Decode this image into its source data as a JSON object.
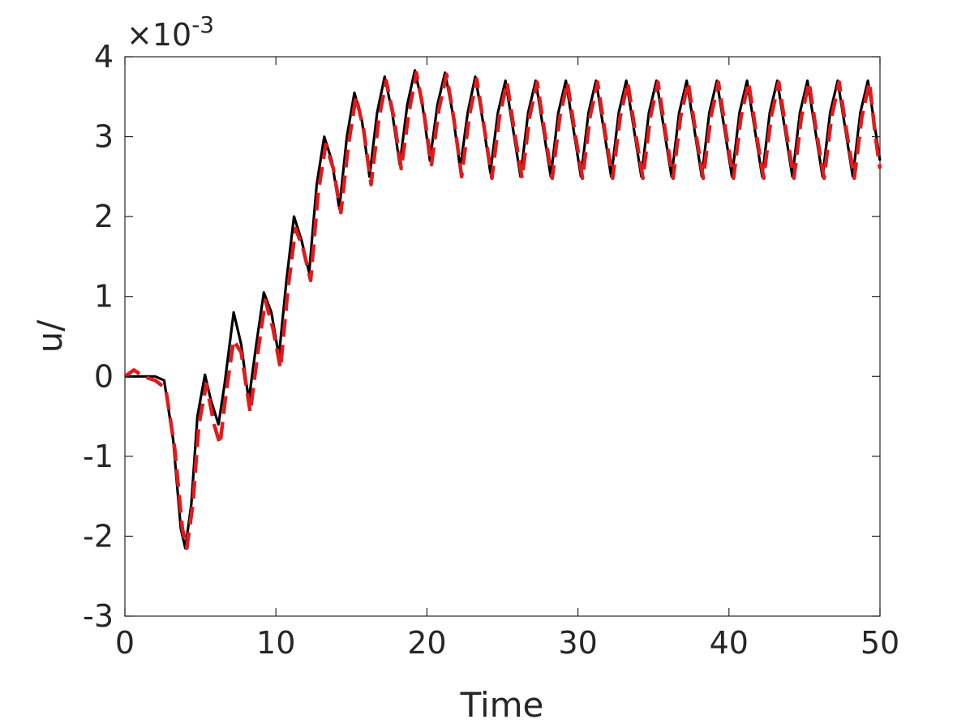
{
  "chart_data": {
    "type": "line",
    "title": "",
    "xlabel": "Time",
    "ylabel": "u/",
    "xlim": [
      0,
      50
    ],
    "ylim": [
      -3,
      4
    ],
    "x_ticks": [
      "0",
      "10",
      "20",
      "30",
      "40",
      "50"
    ],
    "y_ticks": [
      "-3",
      "-2",
      "-1",
      "0",
      "1",
      "2",
      "3",
      "4"
    ],
    "y_exponent": {
      "base": "×10",
      "power": "-3"
    },
    "y_units": "x10^-3",
    "grid": false,
    "legend": "none",
    "series": [
      {
        "style": "solid",
        "color": "#000000",
        "points": [
          [
            0,
            0
          ],
          [
            1,
            0
          ],
          [
            2,
            0
          ],
          [
            2.6,
            -0.05
          ],
          [
            3.2,
            -0.8
          ],
          [
            3.7,
            -1.9
          ],
          [
            4.0,
            -2.15
          ],
          [
            4.4,
            -1.6
          ],
          [
            4.8,
            -0.5
          ],
          [
            5.3,
            0.02
          ],
          [
            5.7,
            -0.3
          ],
          [
            6.2,
            -0.6
          ],
          [
            6.6,
            -0.1
          ],
          [
            7.2,
            0.8
          ],
          [
            7.7,
            0.4
          ],
          [
            8.2,
            -0.3
          ],
          [
            8.7,
            0.4
          ],
          [
            9.2,
            1.05
          ],
          [
            9.7,
            0.8
          ],
          [
            10.2,
            0.25
          ],
          [
            10.7,
            1.2
          ],
          [
            11.2,
            2.0
          ],
          [
            11.7,
            1.7
          ],
          [
            12.2,
            1.3
          ],
          [
            12.7,
            2.4
          ],
          [
            13.2,
            3.0
          ],
          [
            13.7,
            2.7
          ],
          [
            14.2,
            2.1
          ],
          [
            14.7,
            3.0
          ],
          [
            15.2,
            3.55
          ],
          [
            15.7,
            3.2
          ],
          [
            16.2,
            2.5
          ],
          [
            16.7,
            3.3
          ],
          [
            17.2,
            3.75
          ],
          [
            17.7,
            3.3
          ],
          [
            18.2,
            2.65
          ],
          [
            18.7,
            3.4
          ],
          [
            19.2,
            3.83
          ],
          [
            19.7,
            3.4
          ],
          [
            20.2,
            2.7
          ],
          [
            20.7,
            3.4
          ],
          [
            21.2,
            3.8
          ],
          [
            21.7,
            3.3
          ],
          [
            22.2,
            2.6
          ],
          [
            22.7,
            3.3
          ],
          [
            23.2,
            3.75
          ],
          [
            23.7,
            3.2
          ],
          [
            24.2,
            2.55
          ],
          [
            24.7,
            3.3
          ],
          [
            25.2,
            3.7
          ],
          [
            25.7,
            3.1
          ],
          [
            26.2,
            2.5
          ],
          [
            26.7,
            3.3
          ],
          [
            27.2,
            3.7
          ],
          [
            27.7,
            3.1
          ],
          [
            28.2,
            2.5
          ],
          [
            28.7,
            3.3
          ],
          [
            29.2,
            3.7
          ],
          [
            29.7,
            3.1
          ],
          [
            30.2,
            2.5
          ],
          [
            30.7,
            3.3
          ],
          [
            31.2,
            3.7
          ],
          [
            31.7,
            3.1
          ],
          [
            32.2,
            2.5
          ],
          [
            32.7,
            3.3
          ],
          [
            33.2,
            3.7
          ],
          [
            33.7,
            3.1
          ],
          [
            34.2,
            2.5
          ],
          [
            34.7,
            3.3
          ],
          [
            35.2,
            3.7
          ],
          [
            35.7,
            3.1
          ],
          [
            36.2,
            2.5
          ],
          [
            36.7,
            3.3
          ],
          [
            37.2,
            3.7
          ],
          [
            37.7,
            3.1
          ],
          [
            38.2,
            2.5
          ],
          [
            38.7,
            3.3
          ],
          [
            39.2,
            3.7
          ],
          [
            39.7,
            3.1
          ],
          [
            40.2,
            2.5
          ],
          [
            40.7,
            3.3
          ],
          [
            41.2,
            3.7
          ],
          [
            41.7,
            3.1
          ],
          [
            42.2,
            2.5
          ],
          [
            42.7,
            3.3
          ],
          [
            43.2,
            3.7
          ],
          [
            43.7,
            3.1
          ],
          [
            44.2,
            2.5
          ],
          [
            44.7,
            3.3
          ],
          [
            45.2,
            3.7
          ],
          [
            45.7,
            3.1
          ],
          [
            46.2,
            2.5
          ],
          [
            46.7,
            3.3
          ],
          [
            47.2,
            3.7
          ],
          [
            47.7,
            3.1
          ],
          [
            48.2,
            2.5
          ],
          [
            48.7,
            3.3
          ],
          [
            49.2,
            3.7
          ],
          [
            49.6,
            3.2
          ],
          [
            50,
            2.7
          ]
        ]
      },
      {
        "style": "dashed",
        "color": "#e31a1c",
        "points": [
          [
            0,
            0
          ],
          [
            0.6,
            0.08
          ],
          [
            1.2,
            0.0
          ],
          [
            2,
            -0.05
          ],
          [
            2.7,
            -0.15
          ],
          [
            3.3,
            -0.9
          ],
          [
            3.8,
            -1.9
          ],
          [
            4.1,
            -2.15
          ],
          [
            4.5,
            -1.6
          ],
          [
            4.9,
            -0.6
          ],
          [
            5.4,
            -0.1
          ],
          [
            5.9,
            -0.6
          ],
          [
            6.3,
            -0.85
          ],
          [
            6.7,
            -0.2
          ],
          [
            7.2,
            0.45
          ],
          [
            7.7,
            0.3
          ],
          [
            8.3,
            -0.45
          ],
          [
            8.8,
            0.3
          ],
          [
            9.3,
            0.95
          ],
          [
            9.8,
            0.6
          ],
          [
            10.3,
            0.1
          ],
          [
            10.8,
            1.1
          ],
          [
            11.3,
            1.85
          ],
          [
            11.8,
            1.6
          ],
          [
            12.3,
            1.2
          ],
          [
            12.8,
            2.3
          ],
          [
            13.3,
            2.9
          ],
          [
            13.8,
            2.6
          ],
          [
            14.3,
            2.05
          ],
          [
            14.8,
            2.9
          ],
          [
            15.3,
            3.5
          ],
          [
            15.8,
            3.1
          ],
          [
            16.3,
            2.4
          ],
          [
            16.8,
            3.2
          ],
          [
            17.3,
            3.7
          ],
          [
            17.8,
            3.25
          ],
          [
            18.3,
            2.6
          ],
          [
            18.8,
            3.3
          ],
          [
            19.3,
            3.8
          ],
          [
            19.8,
            3.3
          ],
          [
            20.3,
            2.65
          ],
          [
            20.8,
            3.35
          ],
          [
            21.3,
            3.78
          ],
          [
            21.8,
            3.2
          ],
          [
            22.3,
            2.5
          ],
          [
            22.8,
            3.25
          ],
          [
            23.3,
            3.72
          ],
          [
            23.8,
            3.1
          ],
          [
            24.3,
            2.48
          ],
          [
            24.8,
            3.25
          ],
          [
            25.3,
            3.68
          ],
          [
            25.8,
            3.05
          ],
          [
            26.3,
            2.48
          ],
          [
            26.8,
            3.25
          ],
          [
            27.3,
            3.68
          ],
          [
            27.8,
            3.05
          ],
          [
            28.3,
            2.48
          ],
          [
            28.8,
            3.25
          ],
          [
            29.3,
            3.68
          ],
          [
            29.8,
            3.05
          ],
          [
            30.3,
            2.48
          ],
          [
            30.8,
            3.25
          ],
          [
            31.3,
            3.68
          ],
          [
            31.8,
            3.05
          ],
          [
            32.3,
            2.48
          ],
          [
            32.8,
            3.25
          ],
          [
            33.3,
            3.68
          ],
          [
            33.8,
            3.05
          ],
          [
            34.3,
            2.48
          ],
          [
            34.8,
            3.25
          ],
          [
            35.3,
            3.68
          ],
          [
            35.8,
            3.05
          ],
          [
            36.3,
            2.48
          ],
          [
            36.8,
            3.25
          ],
          [
            37.3,
            3.68
          ],
          [
            37.8,
            3.05
          ],
          [
            38.3,
            2.48
          ],
          [
            38.8,
            3.25
          ],
          [
            39.3,
            3.68
          ],
          [
            39.8,
            3.05
          ],
          [
            40.3,
            2.48
          ],
          [
            40.8,
            3.25
          ],
          [
            41.3,
            3.68
          ],
          [
            41.8,
            3.05
          ],
          [
            42.3,
            2.48
          ],
          [
            42.8,
            3.25
          ],
          [
            43.3,
            3.68
          ],
          [
            43.8,
            3.05
          ],
          [
            44.3,
            2.48
          ],
          [
            44.8,
            3.25
          ],
          [
            45.3,
            3.68
          ],
          [
            45.8,
            3.05
          ],
          [
            46.3,
            2.48
          ],
          [
            46.8,
            3.25
          ],
          [
            47.3,
            3.68
          ],
          [
            47.8,
            3.05
          ],
          [
            48.3,
            2.48
          ],
          [
            48.8,
            3.25
          ],
          [
            49.3,
            3.68
          ],
          [
            49.7,
            3.0
          ],
          [
            50,
            2.6
          ]
        ]
      }
    ]
  }
}
